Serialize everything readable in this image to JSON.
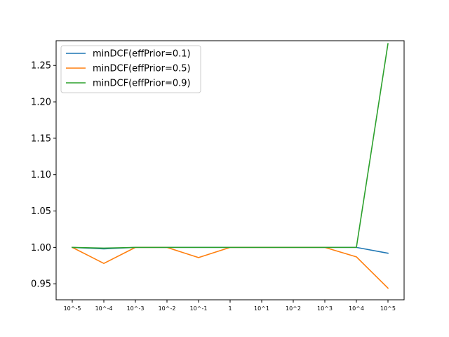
{
  "chart_data": {
    "type": "line",
    "title": "",
    "xlabel": "",
    "ylabel": "",
    "categories": [
      "10^-5",
      "10^-4",
      "10^-3",
      "10^-2",
      "10^-1",
      "1",
      "10^1",
      "10^2",
      "10^3",
      "10^4",
      "10^5"
    ],
    "ylim": [
      0.928,
      1.284
    ],
    "yticks": [
      "0.95",
      "1.00",
      "1.05",
      "1.10",
      "1.15",
      "1.20",
      "1.25"
    ],
    "legend_position": "top-left",
    "series": [
      {
        "name": "minDCF(effPrior=0.1)",
        "color": "#1f77b4",
        "values": [
          1.0,
          0.998,
          1.0,
          1.0,
          1.0,
          1.0,
          1.0,
          1.0,
          1.0,
          1.0,
          0.992
        ]
      },
      {
        "name": "minDCF(effPrior=0.5)",
        "color": "#ff7f0e",
        "values": [
          1.0,
          0.978,
          1.0,
          1.0,
          0.986,
          1.0,
          1.0,
          1.0,
          1.0,
          0.987,
          0.944
        ]
      },
      {
        "name": "minDCF(effPrior=0.9)",
        "color": "#2ca02c",
        "values": [
          1.0,
          0.999,
          1.0,
          1.0,
          1.0,
          1.0,
          1.0,
          1.0,
          1.0,
          1.0,
          1.28
        ]
      }
    ]
  }
}
